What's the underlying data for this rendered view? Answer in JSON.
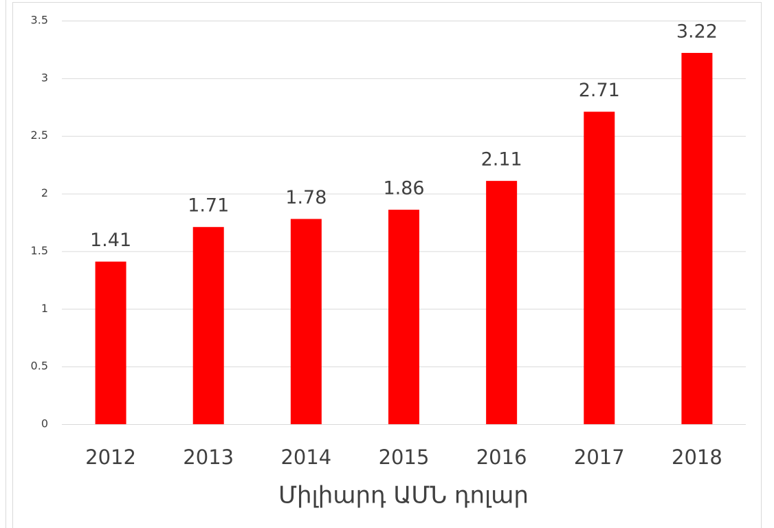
{
  "chart_data": {
    "type": "bar",
    "x_label": "Միլիարդ ԱՄՆ դոլար",
    "categories": [
      "2012",
      "2013",
      "2014",
      "2015",
      "2016",
      "2017",
      "2018"
    ],
    "values": [
      1.41,
      1.71,
      1.78,
      1.86,
      2.11,
      2.71,
      3.22
    ],
    "color": "#ff0000",
    "ylim": [
      0,
      3.5
    ],
    "yticks": [
      0,
      0.5,
      1,
      1.5,
      2,
      2.5,
      3,
      3.5
    ],
    "grid": true
  }
}
